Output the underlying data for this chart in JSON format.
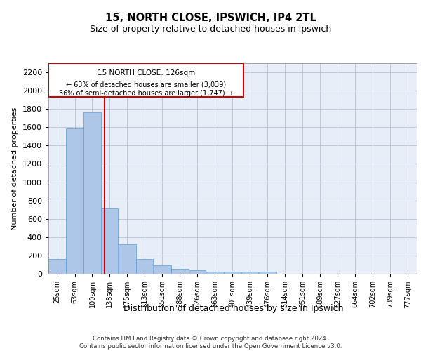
{
  "title1": "15, NORTH CLOSE, IPSWICH, IP4 2TL",
  "title2": "Size of property relative to detached houses in Ipswich",
  "xlabel": "Distribution of detached houses by size in Ipswich",
  "ylabel": "Number of detached properties",
  "footnote": "Contains HM Land Registry data © Crown copyright and database right 2024.\nContains public sector information licensed under the Open Government Licence v3.0.",
  "annotation_title": "15 NORTH CLOSE: 126sqm",
  "annotation_line1": "← 63% of detached houses are smaller (3,039)",
  "annotation_line2": "36% of semi-detached houses are larger (1,747) →",
  "property_line_x": 126,
  "categories": [
    "25sqm",
    "63sqm",
    "100sqm",
    "138sqm",
    "175sqm",
    "213sqm",
    "251sqm",
    "288sqm",
    "326sqm",
    "363sqm",
    "401sqm",
    "439sqm",
    "476sqm",
    "514sqm",
    "551sqm",
    "589sqm",
    "627sqm",
    "664sqm",
    "702sqm",
    "739sqm",
    "777sqm"
  ],
  "bin_edges": [
    6,
    44,
    81,
    119,
    156,
    194,
    231,
    269,
    307,
    344,
    382,
    419,
    457,
    495,
    532,
    570,
    608,
    645,
    683,
    720,
    758,
    796
  ],
  "values": [
    160,
    1590,
    1760,
    710,
    320,
    160,
    90,
    55,
    35,
    25,
    25,
    20,
    20,
    0,
    0,
    0,
    0,
    0,
    0,
    0,
    0
  ],
  "bar_color": "#aec6e8",
  "bar_edge_color": "#5a9fd4",
  "vline_color": "#cc0000",
  "box_edge_color": "#cc0000",
  "grid_color": "#c0c8d8",
  "background_color": "#e8eef8",
  "ylim": [
    0,
    2300
  ],
  "yticks": [
    0,
    200,
    400,
    600,
    800,
    1000,
    1200,
    1400,
    1600,
    1800,
    2000,
    2200
  ]
}
